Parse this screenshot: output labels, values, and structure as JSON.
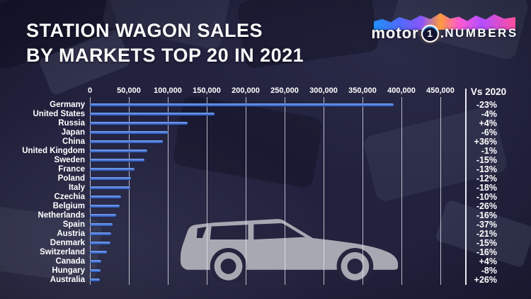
{
  "title": {
    "line1": "STATION WAGON SALES",
    "line2": "BY MARKETS TOP 20 IN 2021"
  },
  "logo": {
    "motor": "motor",
    "one": "1",
    "dot": ".",
    "numbers": "NUMBERS"
  },
  "vs_header": "Vs 2020",
  "colors": {
    "background": "#22223e",
    "bar": "#4a79d8",
    "gridline": "#e8e8f2",
    "car_silhouette": "#a8a8b2",
    "text": "#ffffff"
  },
  "chart_data": {
    "type": "bar",
    "orientation": "horizontal",
    "title": "Station Wagon Sales by Markets Top 20 in 2021",
    "xlabel": "",
    "ylabel": "",
    "xlim": [
      0,
      450000
    ],
    "grid": true,
    "legend": "none",
    "x_ticks": [
      {
        "label": "0",
        "value": 0
      },
      {
        "label": "50,000",
        "value": 50000
      },
      {
        "label": "100,000",
        "value": 100000
      },
      {
        "label": "150,000",
        "value": 150000
      },
      {
        "label": "200,000",
        "value": 200000
      },
      {
        "label": "250,000",
        "value": 250000
      },
      {
        "label": "300,000",
        "value": 300000
      },
      {
        "label": "350,000",
        "value": 350000
      },
      {
        "label": "400,000",
        "value": 400000
      },
      {
        "label": "450,000",
        "value": 450000
      }
    ],
    "categories": [
      "Germany",
      "United States",
      "Russia",
      "Japan",
      "China",
      "United Kingdom",
      "Sweden",
      "France",
      "Poland",
      "Italy",
      "Czechia",
      "Belgium",
      "Netherlands",
      "Spain",
      "Austria",
      "Denmark",
      "Switzerland",
      "Canada",
      "Hungary",
      "Australia"
    ],
    "series": [
      {
        "name": "2021 sales (units, estimated from bars)",
        "values": [
          390000,
          160000,
          125000,
          100000,
          94000,
          74000,
          70000,
          57000,
          53000,
          52000,
          40000,
          38000,
          34000,
          29000,
          27000,
          26000,
          22000,
          14500,
          13500,
          13000
        ]
      },
      {
        "name": "Vs 2020",
        "values": [
          "-23%",
          "-4%",
          "+4%",
          "-6%",
          "+36%",
          "-1%",
          "-15%",
          "-13%",
          "-12%",
          "-18%",
          "-10%",
          "-26%",
          "-16%",
          "-37%",
          "-21%",
          "-15%",
          "-16%",
          "+4%",
          "-8%",
          "+26%"
        ]
      }
    ]
  }
}
